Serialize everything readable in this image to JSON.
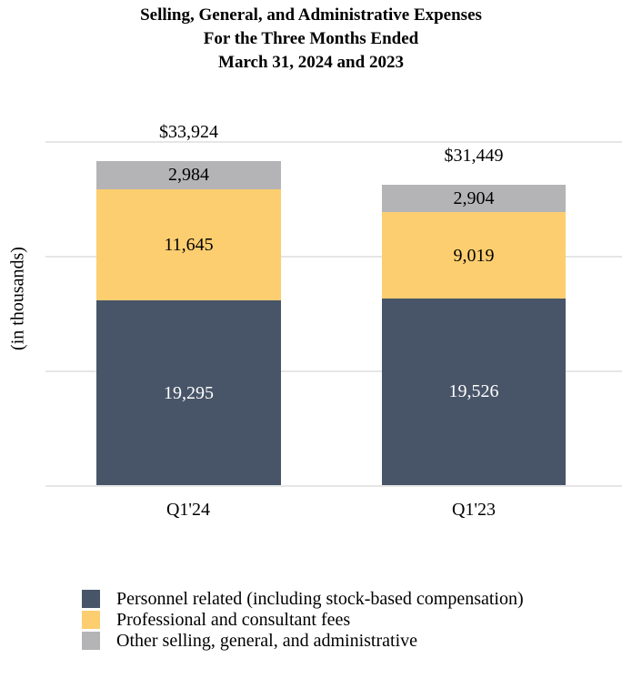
{
  "title": {
    "line1": "Selling, General, and Administrative Expenses",
    "line2": "For the Three Months Ended",
    "line3": "March 31, 2024 and 2023"
  },
  "y_axis_label": "(in thousands)",
  "chart_data": {
    "type": "bar",
    "stacked": true,
    "title": "Selling, General, and Administrative Expenses For the Three Months Ended March 31, 2024 and 2023",
    "xlabel": "",
    "ylabel": "(in thousands)",
    "ylim": [
      0,
      36000
    ],
    "gridline_interval": 12000,
    "grid": true,
    "legend_position": "bottom-left",
    "categories": [
      "Q1'24",
      "Q1'23"
    ],
    "series": [
      {
        "name": "Personnel related (including stock-based compensation)",
        "color": "#485568",
        "label_color": "#ffffff",
        "values": [
          19295,
          19526
        ],
        "labels": [
          "19,295",
          "19,526"
        ]
      },
      {
        "name": "Professional and consultant fees",
        "color": "#fcce6f",
        "label_color": "#000000",
        "values": [
          11645,
          9019
        ],
        "labels": [
          "11,645",
          "9,019"
        ]
      },
      {
        "name": "Other selling, general, and administrative",
        "color": "#b4b4b6",
        "label_color": "#000000",
        "values": [
          2984,
          2904
        ],
        "labels": [
          "2,984",
          "2,904"
        ]
      }
    ],
    "totals": [
      33924,
      31449
    ],
    "total_labels": [
      "$33,924",
      "$31,449"
    ]
  },
  "colors": {
    "gridline": "#e6e6e6",
    "background": "#ffffff",
    "text": "#000000"
  }
}
